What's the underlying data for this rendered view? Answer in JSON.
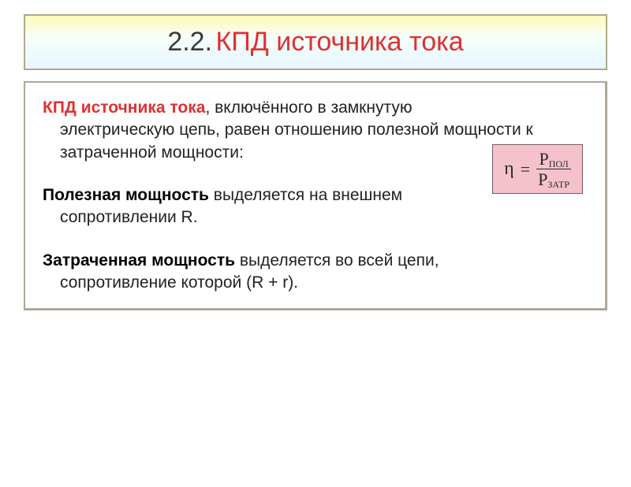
{
  "title": {
    "number": "2.2.",
    "text": "КПД источника тока",
    "border_color": "#b0a888",
    "bg_gradient_top": "#fff9b8",
    "bg_gradient_mid": "#f6fffa",
    "bg_gradient_bot": "#e6f6ff",
    "number_color": "#3a3a3a",
    "title_color": "#e03030",
    "fontsize": 34
  },
  "formula": {
    "lhs": "η",
    "eq": "=",
    "numerator_main": "P",
    "numerator_sub": "ПОЛ",
    "denominator_main": "P",
    "denominator_sub": "ЗАТР",
    "box_bg": "#f4c2cc",
    "box_border": "#7a5a60",
    "text_color": "#2a2a2a",
    "fontsize": 22
  },
  "content": {
    "border_color": "#b0a898",
    "text_color": "#222222",
    "fontsize": 21,
    "term_red_color": "#e03030",
    "paragraphs": [
      {
        "term": "КПД источника тока",
        "term_style": "red",
        "lead": ", включённого в замкнутую",
        "cont": "электрическую цепь, равен отношению полезной мощности к затраченной  мощности:"
      },
      {
        "term": "Полезная мощность",
        "term_style": "black",
        "lead": " выделяется на внешнем",
        "cont": "сопротивлении R."
      },
      {
        "term": "Затраченная мощность",
        "term_style": "black",
        "lead": " выделяется во всей цепи,",
        "cont": "сопротивление которой (R + r)."
      }
    ]
  }
}
